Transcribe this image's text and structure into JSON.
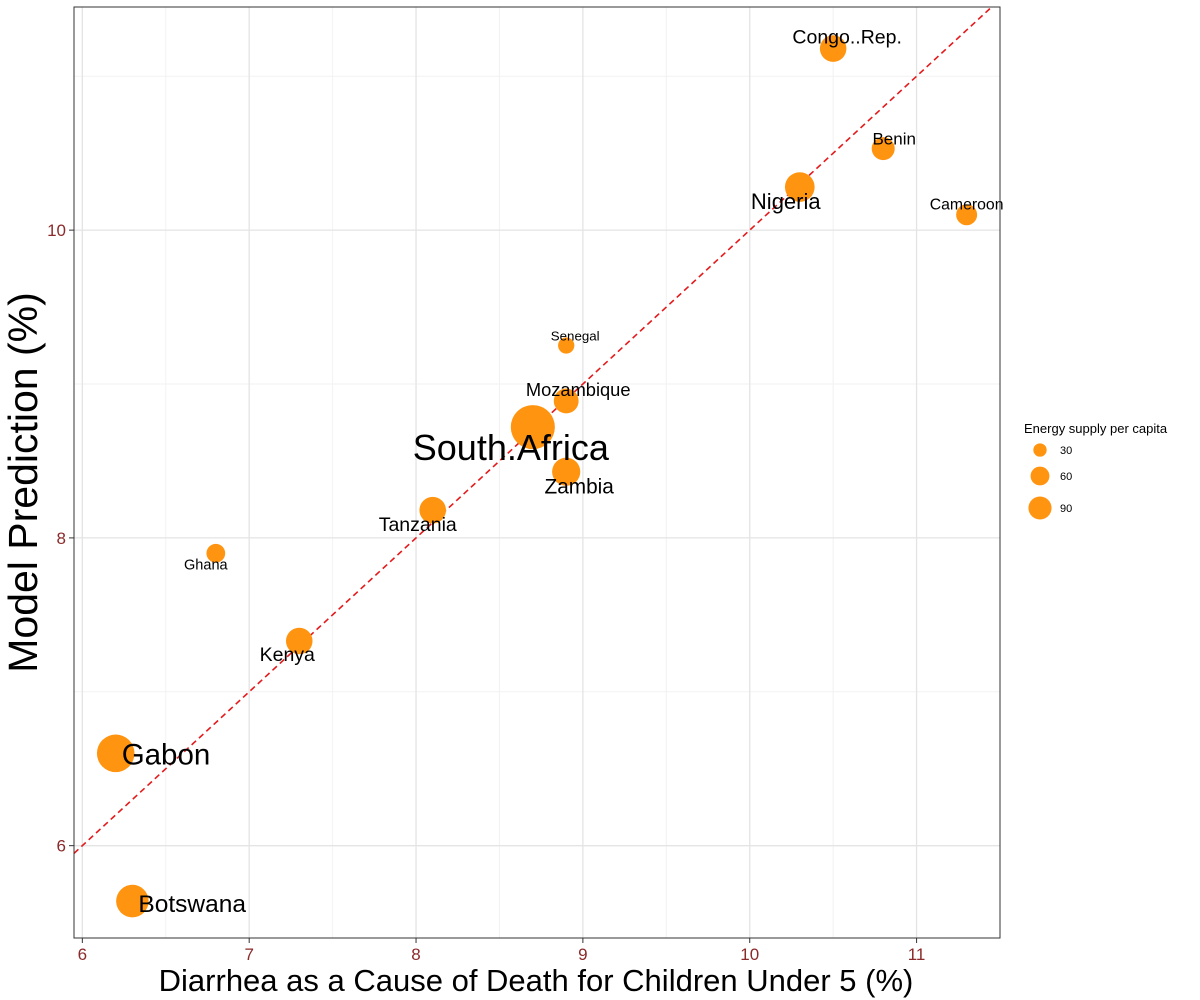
{
  "chart_data": {
    "type": "scatter",
    "title": "",
    "xlabel": "Diarrhea as a Cause of Death for Children Under 5 (%)",
    "ylabel": "Model Prediction (%)",
    "xlim": [
      5.95,
      11.5
    ],
    "ylim": [
      5.4,
      11.45
    ],
    "x_ticks": [
      6,
      7,
      8,
      9,
      10,
      11
    ],
    "y_ticks": [
      6,
      8,
      10
    ],
    "grid": true,
    "reference_line": {
      "type": "identity",
      "slope": 1,
      "intercept": 0,
      "style": "dashed",
      "color": "#e41a1c"
    },
    "point_color": "#ff9410",
    "tick_label_color": "#8b2a2a",
    "legend": {
      "title": "Energy supply per capita",
      "position": "right",
      "entries": [
        {
          "label": "30",
          "value": 30
        },
        {
          "label": "60",
          "value": 60
        },
        {
          "label": "90",
          "value": 90
        }
      ]
    },
    "points": [
      {
        "label": "Congo..Rep.",
        "x": 10.5,
        "y": 11.18,
        "size": 40
      },
      {
        "label": "Benin",
        "x": 10.8,
        "y": 10.53,
        "size": 30
      },
      {
        "label": "Nigeria",
        "x": 10.3,
        "y": 10.28,
        "size": 50
      },
      {
        "label": "Cameroon",
        "x": 11.3,
        "y": 10.1,
        "size": 25
      },
      {
        "label": "Senegal",
        "x": 8.9,
        "y": 9.25,
        "size": 15
      },
      {
        "label": "Mozambique",
        "x": 8.9,
        "y": 8.89,
        "size": 35
      },
      {
        "label": "South.Africa",
        "x": 8.7,
        "y": 8.72,
        "size": 110
      },
      {
        "label": "Zambia",
        "x": 8.9,
        "y": 8.43,
        "size": 45
      },
      {
        "label": "Tanzania",
        "x": 8.1,
        "y": 8.18,
        "size": 40
      },
      {
        "label": "Ghana",
        "x": 6.8,
        "y": 7.9,
        "size": 20
      },
      {
        "label": "Kenya",
        "x": 7.3,
        "y": 7.33,
        "size": 40
      },
      {
        "label": "Gabon",
        "x": 6.2,
        "y": 6.6,
        "size": 80
      },
      {
        "label": "Botswana",
        "x": 6.3,
        "y": 5.64,
        "size": 60
      }
    ]
  }
}
